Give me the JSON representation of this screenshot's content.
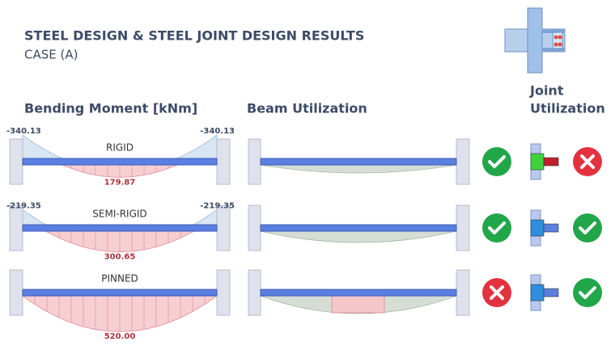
{
  "header": {
    "title": "STEEL DESIGN & STEEL JOINT DESIGN RESULTS",
    "subtitle": "CASE (A)"
  },
  "columns": {
    "moment": "Bending Moment [kNm]",
    "beam": "Beam Utilization",
    "joint": [
      "Joint",
      "Utilization"
    ]
  },
  "rows": [
    {
      "label": "RIGID",
      "end_moments": [
        {
          "value": -340.13,
          "label": "-340.13"
        },
        {
          "value": -340.13,
          "label": "-340.13"
        }
      ],
      "mid_moment": {
        "value": 179.87,
        "label": "179.87"
      }
    },
    {
      "label": "SEMI-RIGID",
      "end_moments": [
        {
          "value": -219.35,
          "label": "-219.35"
        },
        {
          "value": -219.35,
          "label": "-219.35"
        }
      ],
      "mid_moment": {
        "value": 300.65,
        "label": "300.65"
      }
    },
    {
      "label": "PINNED",
      "mid_moment": {
        "value": 520.0,
        "label": "520.00"
      }
    }
  ]
}
